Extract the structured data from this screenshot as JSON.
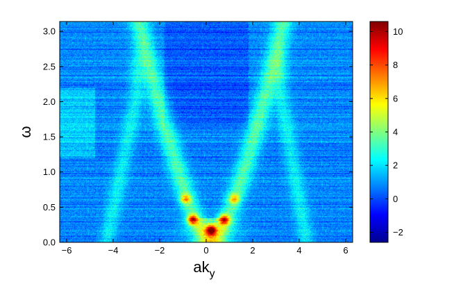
{
  "chart_data": {
    "type": "heatmap",
    "title": "",
    "xlabel": "ak",
    "xlabel_subscript": "y",
    "ylabel": "ω",
    "xlim": [
      -6.3,
      6.3
    ],
    "ylim": [
      0,
      3.14
    ],
    "x_ticks": [
      -6,
      -4,
      -2,
      0,
      2,
      4,
      6
    ],
    "x_tick_labels": [
      "−6",
      "−4",
      "−2",
      "0",
      "2",
      "4",
      "6"
    ],
    "y_ticks": [
      0,
      0.5,
      1.0,
      1.5,
      2.0,
      2.5,
      3.0
    ],
    "y_tick_labels": [
      "0.0",
      "0.5",
      "1.0",
      "1.5",
      "2.0",
      "2.5",
      "3.0"
    ],
    "colorbar": {
      "colormap": "jet",
      "range": [
        -2.6,
        10.6
      ],
      "ticks": [
        -2,
        0,
        2,
        4,
        6,
        8,
        10
      ],
      "tick_labels": [
        "−2",
        "0",
        "2",
        "4",
        "6",
        "8",
        "10"
      ]
    },
    "background_level": 0.8,
    "features": [
      {
        "kind": "main-dispersion-branch",
        "shape": "V/parabola centered at ak_y≈0.2, ω≈0.15 at bottom, reaching ak_y≈−2.7 and ≈2.8 at ω=3.14",
        "level": 3.5
      },
      {
        "kind": "side-branch-left",
        "shape": "from ak_y≈−4.3 at ω≈0 to ak_y≈−3.0 at ω≈2.1",
        "level": 2.3
      },
      {
        "kind": "side-branch-right",
        "shape": "from ak_y≈4.3 at ω≈0 to ak_y≈3.2 at ω≈2.1",
        "level": 2.3
      },
      {
        "kind": "hotspot",
        "x": 0.2,
        "y": 0.18,
        "level": 10.5
      },
      {
        "kind": "hotspot",
        "x": -0.6,
        "y": 0.33,
        "level": 9.0
      },
      {
        "kind": "hotspot",
        "x": 0.75,
        "y": 0.33,
        "level": 8.5
      },
      {
        "kind": "hotspot",
        "x": -0.9,
        "y": 0.62,
        "level": 7.0
      },
      {
        "kind": "hotspot",
        "x": 1.2,
        "y": 0.62,
        "level": 6.5
      }
    ]
  }
}
